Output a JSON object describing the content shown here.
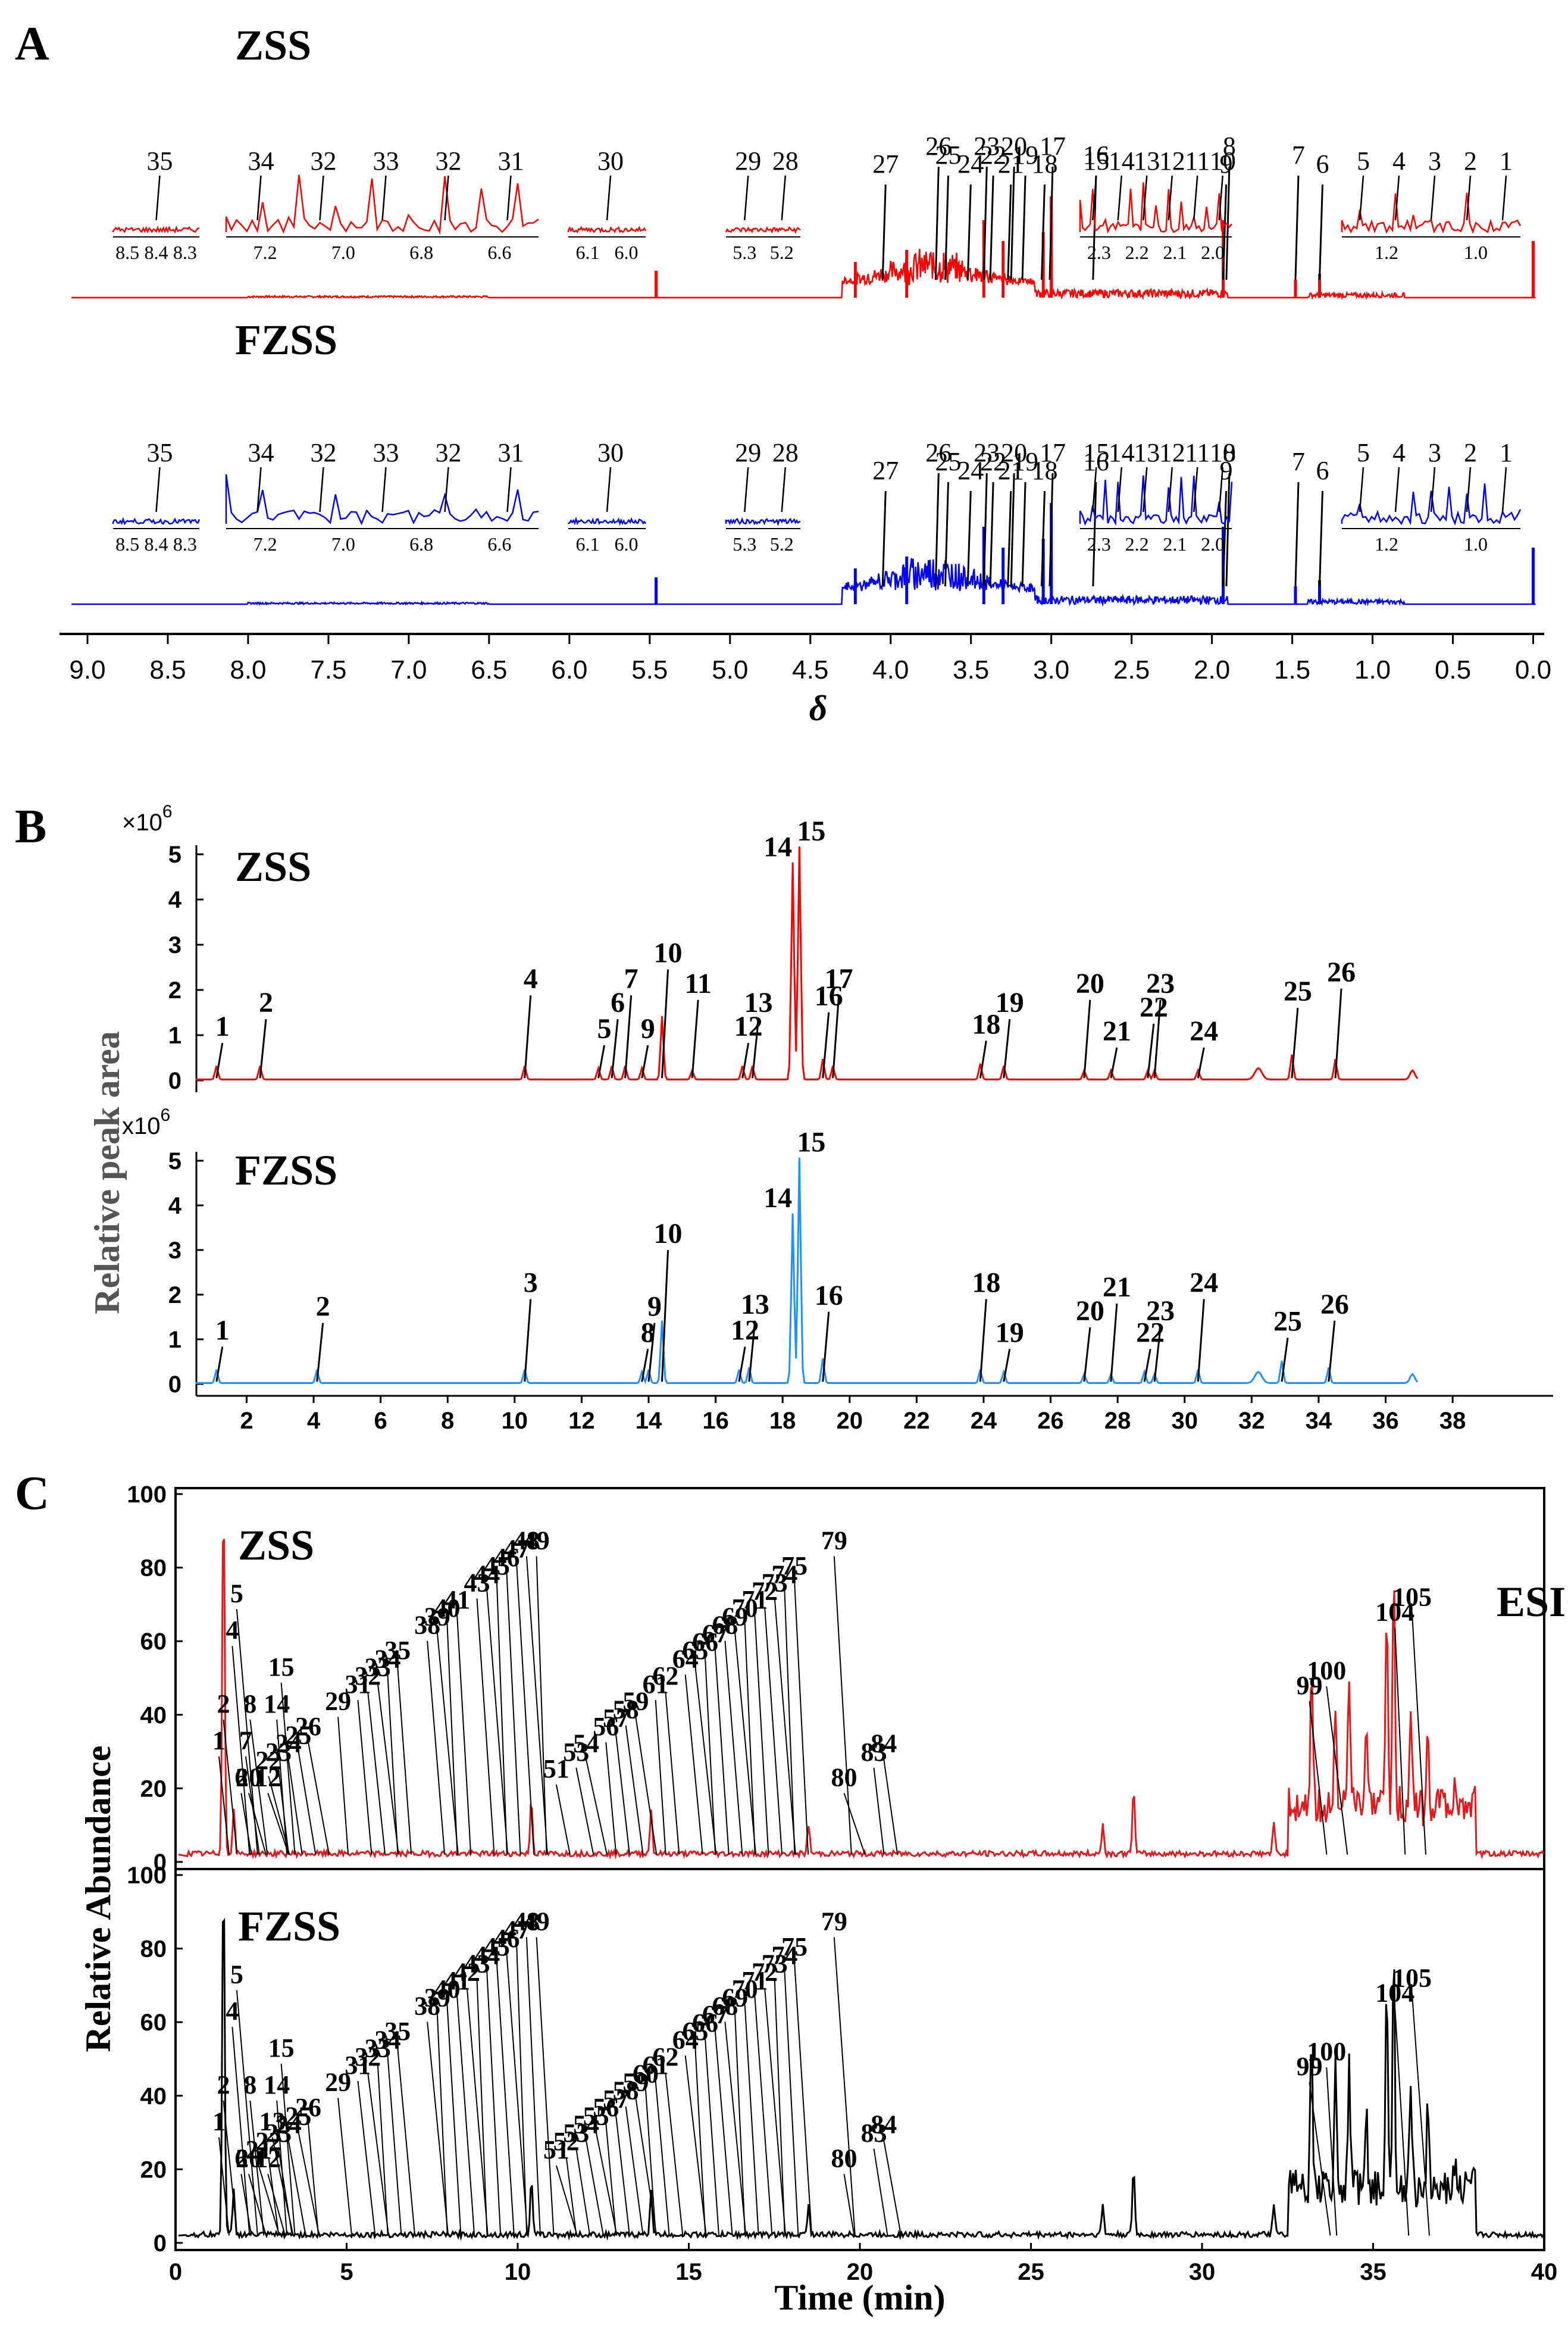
{
  "panels": {
    "A": {
      "letter": "A",
      "samples": [
        "ZSS",
        "FZSS"
      ],
      "colors": {
        "ZSS": "#ff0000",
        "FZSS": "#0000ff"
      },
      "xlabel": "δ",
      "xlim": [
        9.1,
        -0.05
      ],
      "xticks": [
        "9.0",
        "8.5",
        "8.0",
        "7.5",
        "7.0",
        "6.5",
        "6.0",
        "5.5",
        "5.0",
        "4.5",
        "4.0",
        "3.5",
        "3.0",
        "2.5",
        "2.0",
        "1.5",
        "1.0",
        "0.5",
        "0.0"
      ],
      "peaks_ZSS": [
        {
          "id": "1",
          "ppm": 0.97
        },
        {
          "id": "2",
          "ppm": 1.03
        },
        {
          "id": "3",
          "ppm": 1.06
        },
        {
          "id": "4",
          "ppm": 1.14
        },
        {
          "id": "5",
          "ppm": 1.19
        },
        {
          "id": "6",
          "ppm": 1.33
        },
        {
          "id": "7",
          "ppm": 1.48
        },
        {
          "id": "8",
          "ppm": 1.91
        },
        {
          "id": "9",
          "ppm": 1.93
        },
        {
          "id": "10",
          "ppm": 2.01
        },
        {
          "id": "11",
          "ppm": 2.05
        },
        {
          "id": "12",
          "ppm": 2.12
        },
        {
          "id": "13",
          "ppm": 2.17
        },
        {
          "id": "14",
          "ppm": 2.24
        },
        {
          "id": "15",
          "ppm": 2.32
        },
        {
          "id": "16",
          "ppm": 2.74
        },
        {
          "id": "17",
          "ppm": 3.01
        },
        {
          "id": "18",
          "ppm": 3.06
        },
        {
          "id": "19",
          "ppm": 3.18
        },
        {
          "id": "20",
          "ppm": 3.25
        },
        {
          "id": "21",
          "ppm": 3.27
        },
        {
          "id": "22",
          "ppm": 3.38
        },
        {
          "id": "23",
          "ppm": 3.42
        },
        {
          "id": "24",
          "ppm": 3.52
        },
        {
          "id": "25",
          "ppm": 3.66
        },
        {
          "id": "26",
          "ppm": 3.72
        },
        {
          "id": "27",
          "ppm": 4.05
        },
        {
          "id": "28",
          "ppm": 5.19
        },
        {
          "id": "29",
          "ppm": 5.23
        },
        {
          "id": "30",
          "ppm": 6.05
        },
        {
          "id": "31",
          "ppm": 6.53
        },
        {
          "id": "32",
          "ppm": 6.86
        },
        {
          "id": "33",
          "ppm": 7.05
        },
        {
          "id": "34",
          "ppm": 7.38
        },
        {
          "id": "35",
          "ppm": 8.45
        }
      ],
      "insets": [
        {
          "name": "aromatic-high",
          "ticks": [
            "8.5",
            "8.4",
            "8.3"
          ],
          "peaks": [
            "35"
          ]
        },
        {
          "name": "aromatic",
          "ticks": [
            "7.2",
            "7.0",
            "6.8",
            "6.6"
          ],
          "peaks": [
            "34",
            "32",
            "33",
            "32",
            "31"
          ]
        },
        {
          "name": "olefinic",
          "ticks": [
            "6.1",
            "6.0"
          ],
          "peaks": [
            "30"
          ]
        },
        {
          "name": "anomeric",
          "ticks": [
            "5.3",
            "5.2"
          ],
          "peaks": [
            "29",
            "28"
          ]
        },
        {
          "name": "aliphatic",
          "ticks": [
            "2.3",
            "2.2",
            "2.1",
            "2.0"
          ],
          "peaks": [
            "15",
            "14",
            "13",
            "12",
            "11",
            "10"
          ]
        },
        {
          "name": "methyl",
          "ticks": [
            "1.2",
            "1.0"
          ],
          "peaks": [
            "5",
            "4",
            "3",
            "2",
            "1"
          ]
        }
      ]
    },
    "B": {
      "letter": "B",
      "samples": [
        "ZSS",
        "FZSS"
      ],
      "colors": {
        "ZSS": "#ff0000",
        "FZSS": "#1e90ff"
      },
      "ylabel": "Relative peak area",
      "multiplier_ZSS": "×10",
      "multiplier_FZSS": "x10",
      "multiplier_exp": "6",
      "yticks": [
        "0",
        "1",
        "2",
        "3",
        "4",
        "5"
      ],
      "ylim": [
        0,
        5.2
      ],
      "xlim": [
        0.5,
        41
      ],
      "xticks": [
        "2",
        "4",
        "6",
        "8",
        "10",
        "12",
        "14",
        "16",
        "18",
        "20",
        "22",
        "24",
        "26",
        "28",
        "30",
        "32",
        "34",
        "36",
        "38"
      ],
      "peaks_ZSS": [
        {
          "id": "1",
          "t": 1.1,
          "h": 0.3
        },
        {
          "id": "2",
          "t": 2.4,
          "h": 0.3
        },
        {
          "id": "4",
          "t": 10.3,
          "h": 0.3
        },
        {
          "id": "5",
          "t": 12.5,
          "h": 0.25
        },
        {
          "id": "6",
          "t": 12.9,
          "h": 0.3
        },
        {
          "id": "7",
          "t": 13.3,
          "h": 0.3
        },
        {
          "id": "9",
          "t": 13.8,
          "h": 0.25
        },
        {
          "id": "10",
          "t": 14.4,
          "h": 1.4
        },
        {
          "id": "11",
          "t": 15.3,
          "h": 0.2
        },
        {
          "id": "12",
          "t": 16.8,
          "h": 0.3
        },
        {
          "id": "13",
          "t": 17.1,
          "h": 0.3
        },
        {
          "id": "14",
          "t": 18.3,
          "h": 4.8
        },
        {
          "id": "15",
          "t": 18.5,
          "h": 5.15
        },
        {
          "id": "16",
          "t": 19.2,
          "h": 0.45
        },
        {
          "id": "17",
          "t": 19.5,
          "h": 0.3
        },
        {
          "id": "18",
          "t": 23.9,
          "h": 0.35
        },
        {
          "id": "19",
          "t": 24.6,
          "h": 0.3
        },
        {
          "id": "20",
          "t": 27.0,
          "h": 0.2
        },
        {
          "id": "21",
          "t": 27.8,
          "h": 0.2
        },
        {
          "id": "22",
          "t": 28.9,
          "h": 0.2
        },
        {
          "id": "23",
          "t": 29.1,
          "h": 0.2
        },
        {
          "id": "24",
          "t": 30.4,
          "h": 0.2
        },
        {
          "id": "25",
          "t": 33.2,
          "h": 0.55
        },
        {
          "id": "26",
          "t": 34.5,
          "h": 0.45
        }
      ],
      "peaks_FZSS": [
        {
          "id": "1",
          "t": 1.1,
          "h": 0.3
        },
        {
          "id": "2",
          "t": 4.1,
          "h": 0.3
        },
        {
          "id": "3",
          "t": 10.3,
          "h": 0.3
        },
        {
          "id": "8",
          "t": 13.8,
          "h": 0.25
        },
        {
          "id": "9",
          "t": 14.0,
          "h": 0.3
        },
        {
          "id": "10",
          "t": 14.4,
          "h": 1.4
        },
        {
          "id": "12",
          "t": 16.7,
          "h": 0.3
        },
        {
          "id": "13",
          "t": 17.0,
          "h": 0.35
        },
        {
          "id": "14",
          "t": 18.3,
          "h": 3.8
        },
        {
          "id": "15",
          "t": 18.5,
          "h": 5.05
        },
        {
          "id": "16",
          "t": 19.2,
          "h": 0.55
        },
        {
          "id": "18",
          "t": 23.9,
          "h": 0.3
        },
        {
          "id": "19",
          "t": 24.6,
          "h": 0.25
        },
        {
          "id": "20",
          "t": 27.0,
          "h": 0.2
        },
        {
          "id": "21",
          "t": 27.8,
          "h": 0.2
        },
        {
          "id": "22",
          "t": 28.8,
          "h": 0.25
        },
        {
          "id": "23",
          "t": 29.1,
          "h": 0.2
        },
        {
          "id": "24",
          "t": 30.4,
          "h": 0.3
        },
        {
          "id": "25",
          "t": 32.9,
          "h": 0.5
        },
        {
          "id": "26",
          "t": 34.3,
          "h": 0.35
        }
      ]
    },
    "C": {
      "letter": "C",
      "samples": [
        "ZSS",
        "FZSS"
      ],
      "colors": {
        "ZSS": "#e31a1c",
        "FZSS": "#000000"
      },
      "mode": "ESI+",
      "ylabel": "Relative Abundance",
      "xlabel": "Time (min)",
      "yticks": [
        "0",
        "20",
        "40",
        "60",
        "80",
        "100"
      ],
      "xticks": [
        "0",
        "5",
        "10",
        "15",
        "20",
        "25",
        "30",
        "35",
        "40"
      ],
      "xlim": [
        0,
        40
      ],
      "ylim": [
        0,
        100
      ],
      "labels_ZSS": [
        "1",
        "2",
        "4",
        "5",
        "6",
        "7",
        "8",
        "12",
        "14",
        "15",
        "20",
        "22",
        "23",
        "24",
        "25",
        "26",
        "29",
        "31",
        "32",
        "33",
        "34",
        "35",
        "38",
        "39",
        "40",
        "41",
        "43",
        "44",
        "45",
        "46",
        "47",
        "48",
        "49",
        "51",
        "53",
        "54",
        "56",
        "57",
        "58",
        "59",
        "61",
        "62",
        "64",
        "65",
        "66",
        "67",
        "68",
        "69",
        "70",
        "71",
        "72",
        "73",
        "74",
        "75",
        "79",
        "80",
        "83",
        "84",
        "99",
        "100",
        "104",
        "105"
      ],
      "labels_FZSS": [
        "1",
        "2",
        "4",
        "5",
        "6",
        "8",
        "12",
        "13",
        "14",
        "15",
        "20",
        "21",
        "22",
        "23",
        "24",
        "25",
        "26",
        "29",
        "31",
        "32",
        "33",
        "34",
        "35",
        "38",
        "39",
        "40",
        "41",
        "42",
        "43",
        "44",
        "45",
        "46",
        "47",
        "48",
        "49",
        "51",
        "52",
        "53",
        "54",
        "55",
        "56",
        "57",
        "58",
        "59",
        "60",
        "61",
        "62",
        "64",
        "65",
        "66",
        "67",
        "68",
        "69",
        "70",
        "71",
        "72",
        "73",
        "74",
        "75",
        "79",
        "80",
        "83",
        "84",
        "99",
        "100",
        "104",
        "105"
      ]
    }
  }
}
